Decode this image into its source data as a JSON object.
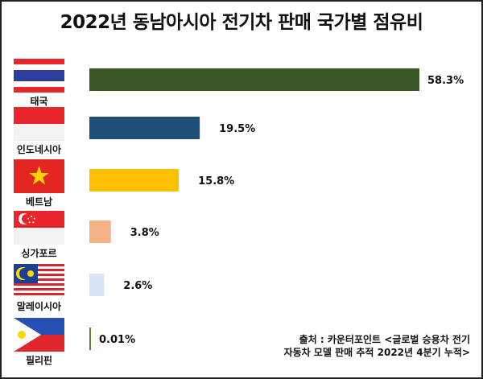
{
  "chart_data": {
    "type": "bar",
    "orientation": "horizontal",
    "title": "2022년 동남아시아 전기차 판매 국가별 점유비",
    "categories": [
      "태국",
      "인도네시아",
      "베트남",
      "싱가포르",
      "말레이시아",
      "필리핀"
    ],
    "values": [
      58.3,
      19.5,
      15.8,
      3.8,
      2.6,
      0.01
    ],
    "value_labels": [
      "58.3%",
      "19.5%",
      "15.8%",
      "3.8%",
      "2.6%",
      "0.01%"
    ],
    "unit": "%",
    "colors": [
      "#375623",
      "#1f4e79",
      "#ffc000",
      "#f4b183",
      "#dae3f3",
      "#548235"
    ],
    "flags": [
      "thailand-flag",
      "indonesia-flag",
      "vietnam-flag",
      "singapore-flag",
      "malaysia-flag",
      "philippines-flag"
    ],
    "grid": false,
    "legend": "none",
    "source_lines": [
      "출처 : 카운터포인트 <글로벌 승용차 전기",
      "자동차 모델 판매 추적 2022년 4분기 누적>"
    ]
  }
}
